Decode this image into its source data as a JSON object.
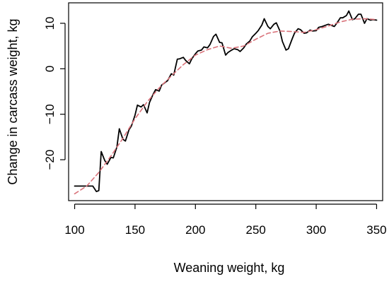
{
  "chart_data": {
    "type": "line",
    "title": "",
    "xlabel": "Weaning weight, kg",
    "ylabel": "Change in carcass weight, kg",
    "xlim": [
      95,
      355
    ],
    "ylim": [
      -29,
      14.5
    ],
    "x_ticks": [
      100,
      150,
      200,
      250,
      300,
      350
    ],
    "y_ticks": [
      -20,
      -10,
      0,
      10
    ],
    "x_tick_labels": [
      "100",
      "150",
      "200",
      "250",
      "300",
      "350"
    ],
    "y_tick_labels": [
      "−20",
      "−10",
      "0",
      "10"
    ],
    "grid": false,
    "legend": "none",
    "series": [
      {
        "style": "solid",
        "color": "#000000",
        "points": [
          [
            100,
            -25.8
          ],
          [
            105,
            -25.8
          ],
          [
            110,
            -25.8
          ],
          [
            115,
            -25.8
          ],
          [
            118,
            -27.0
          ],
          [
            120,
            -26.8
          ],
          [
            122,
            -18.2
          ],
          [
            125,
            -20.2
          ],
          [
            127,
            -21.0
          ],
          [
            130,
            -19.5
          ],
          [
            132,
            -19.6
          ],
          [
            135,
            -17.2
          ],
          [
            137,
            -13.2
          ],
          [
            140,
            -15.5
          ],
          [
            142,
            -15.9
          ],
          [
            145,
            -13.4
          ],
          [
            147,
            -12.6
          ],
          [
            150,
            -10.2
          ],
          [
            152,
            -8.0
          ],
          [
            155,
            -8.4
          ],
          [
            157,
            -7.9
          ],
          [
            160,
            -9.7
          ],
          [
            162,
            -7.4
          ],
          [
            165,
            -5.6
          ],
          [
            167,
            -4.6
          ],
          [
            170,
            -4.9
          ],
          [
            172,
            -3.6
          ],
          [
            175,
            -3.0
          ],
          [
            177,
            -2.6
          ],
          [
            180,
            -1.1
          ],
          [
            182,
            -1.4
          ],
          [
            185,
            2.1
          ],
          [
            187,
            2.2
          ],
          [
            190,
            2.5
          ],
          [
            192,
            1.8
          ],
          [
            195,
            1.1
          ],
          [
            197,
            2.2
          ],
          [
            200,
            3.3
          ],
          [
            202,
            3.9
          ],
          [
            205,
            4.1
          ],
          [
            207,
            4.8
          ],
          [
            210,
            4.6
          ],
          [
            212,
            5.3
          ],
          [
            215,
            7.1
          ],
          [
            217,
            7.6
          ],
          [
            220,
            5.8
          ],
          [
            222,
            5.7
          ],
          [
            225,
            3.0
          ],
          [
            227,
            3.6
          ],
          [
            230,
            4.1
          ],
          [
            232,
            4.4
          ],
          [
            235,
            4.2
          ],
          [
            237,
            3.8
          ],
          [
            240,
            4.6
          ],
          [
            242,
            5.4
          ],
          [
            245,
            6.1
          ],
          [
            247,
            7.0
          ],
          [
            250,
            7.8
          ],
          [
            252,
            8.4
          ],
          [
            255,
            9.6
          ],
          [
            257,
            11.0
          ],
          [
            260,
            9.3
          ],
          [
            262,
            8.8
          ],
          [
            265,
            9.8
          ],
          [
            267,
            10.1
          ],
          [
            270,
            8.3
          ],
          [
            272,
            6.0
          ],
          [
            275,
            4.1
          ],
          [
            277,
            4.4
          ],
          [
            280,
            6.5
          ],
          [
            282,
            7.8
          ],
          [
            285,
            8.8
          ],
          [
            287,
            8.6
          ],
          [
            290,
            7.8
          ],
          [
            292,
            7.9
          ],
          [
            295,
            8.5
          ],
          [
            297,
            8.3
          ],
          [
            300,
            8.4
          ],
          [
            302,
            9.1
          ],
          [
            305,
            9.3
          ],
          [
            307,
            9.5
          ],
          [
            310,
            9.8
          ],
          [
            312,
            9.6
          ],
          [
            315,
            9.3
          ],
          [
            317,
            10.0
          ],
          [
            320,
            11.2
          ],
          [
            322,
            11.2
          ],
          [
            325,
            11.7
          ],
          [
            327,
            12.7
          ],
          [
            330,
            10.8
          ],
          [
            332,
            11.0
          ],
          [
            335,
            12.0
          ],
          [
            337,
            12.0
          ],
          [
            340,
            10.0
          ],
          [
            342,
            11.0
          ],
          [
            345,
            10.7
          ],
          [
            347,
            10.8
          ],
          [
            350,
            10.7
          ]
        ]
      },
      {
        "style": "dashed",
        "color": "#d9727a",
        "points": [
          [
            100,
            -27.5
          ],
          [
            110,
            -25.8
          ],
          [
            120,
            -22.8
          ],
          [
            130,
            -19.2
          ],
          [
            140,
            -15.3
          ],
          [
            150,
            -11.0
          ],
          [
            160,
            -7.3
          ],
          [
            170,
            -4.2
          ],
          [
            180,
            -1.6
          ],
          [
            190,
            0.9
          ],
          [
            200,
            3.0
          ],
          [
            210,
            4.2
          ],
          [
            220,
            5.0
          ],
          [
            230,
            4.5
          ],
          [
            240,
            5.0
          ],
          [
            250,
            6.5
          ],
          [
            260,
            7.8
          ],
          [
            270,
            8.3
          ],
          [
            280,
            8.2
          ],
          [
            290,
            8.0
          ],
          [
            300,
            8.6
          ],
          [
            310,
            9.4
          ],
          [
            320,
            10.3
          ],
          [
            330,
            10.9
          ],
          [
            340,
            11.0
          ],
          [
            350,
            10.8
          ]
        ]
      }
    ]
  }
}
